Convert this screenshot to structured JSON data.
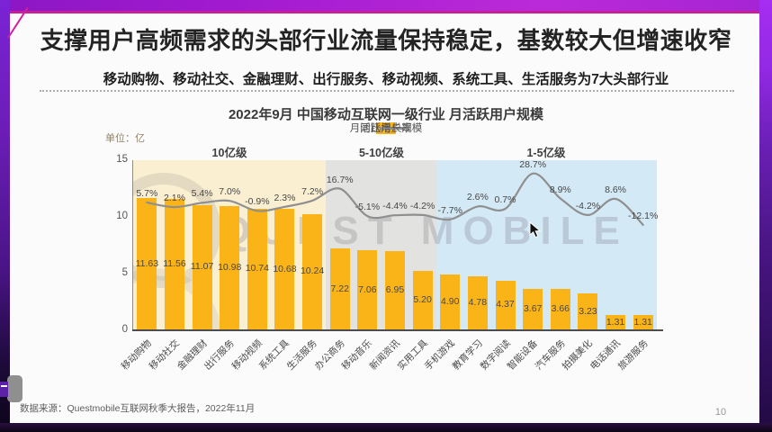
{
  "slide": {
    "title": "支撑用户高频需求的头部行业流量保持稳定，基数较大但增速收窄",
    "subtitle": "移动购物、移动社交、金融理财、出行服务、移动视频、系统工具、生活服务为7大头部行业",
    "source": "数据来源：Questmobile互联网秋季大报告，2022年11月",
    "page_number": "10"
  },
  "chart": {
    "title": "2022年9月 中国移动互联网一级行业 月活跃用户规模",
    "unit_label": "单位：亿",
    "watermark": "QUEST MOBILE",
    "legend": [
      {
        "label": "月活跃用户规模",
        "type": "bar",
        "color": "#FBB418"
      },
      {
        "label": "同比增长率",
        "type": "line",
        "color": "#8f8f8f"
      }
    ]
  },
  "chart_data": {
    "type": "bar",
    "title": "2022年9月 中国移动互联网一级行业 月活跃用户规模",
    "unit": "亿",
    "categories": [
      "移动购物",
      "移动社交",
      "金融理财",
      "出行服务",
      "移动视频",
      "系统工具",
      "生活服务",
      "办公商务",
      "移动音乐",
      "新闻资讯",
      "实用工具",
      "手机游戏",
      "教育学习",
      "数字阅读",
      "智能设备",
      "汽车服务",
      "拍摄美化",
      "电话通讯",
      "旅游服务"
    ],
    "series": [
      {
        "name": "月活跃用户规模",
        "unit": "亿",
        "type": "bar",
        "color": "#FBB418",
        "values": [
          11.63,
          11.56,
          11.07,
          10.98,
          10.74,
          10.68,
          10.24,
          7.22,
          7.06,
          6.95,
          5.2,
          4.9,
          4.78,
          4.37,
          3.67,
          3.66,
          3.23,
          1.31,
          1.31
        ]
      },
      {
        "name": "同比增长率",
        "unit": "%",
        "type": "line",
        "color": "#8f8f8f",
        "values": [
          5.7,
          2.1,
          5.4,
          7.0,
          -0.9,
          2.3,
          7.2,
          16.7,
          -5.1,
          -4.4,
          -4.2,
          -7.7,
          2.6,
          0.7,
          28.7,
          8.9,
          -4.2,
          8.6,
          -12.1
        ]
      }
    ],
    "zones": [
      {
        "label": "10亿级",
        "start": 0,
        "count": 7,
        "color": "#FBEFD2"
      },
      {
        "label": "5-10亿级",
        "start": 7,
        "count": 4,
        "color": "#E2E2E0"
      },
      {
        "label": "1-5亿级",
        "start": 11,
        "count": 8,
        "color": "#D4E9F6"
      }
    ],
    "ylim": [
      0,
      15
    ],
    "yticks": [
      0,
      5,
      10,
      15
    ],
    "grid": false,
    "legend_position": "top-center"
  }
}
